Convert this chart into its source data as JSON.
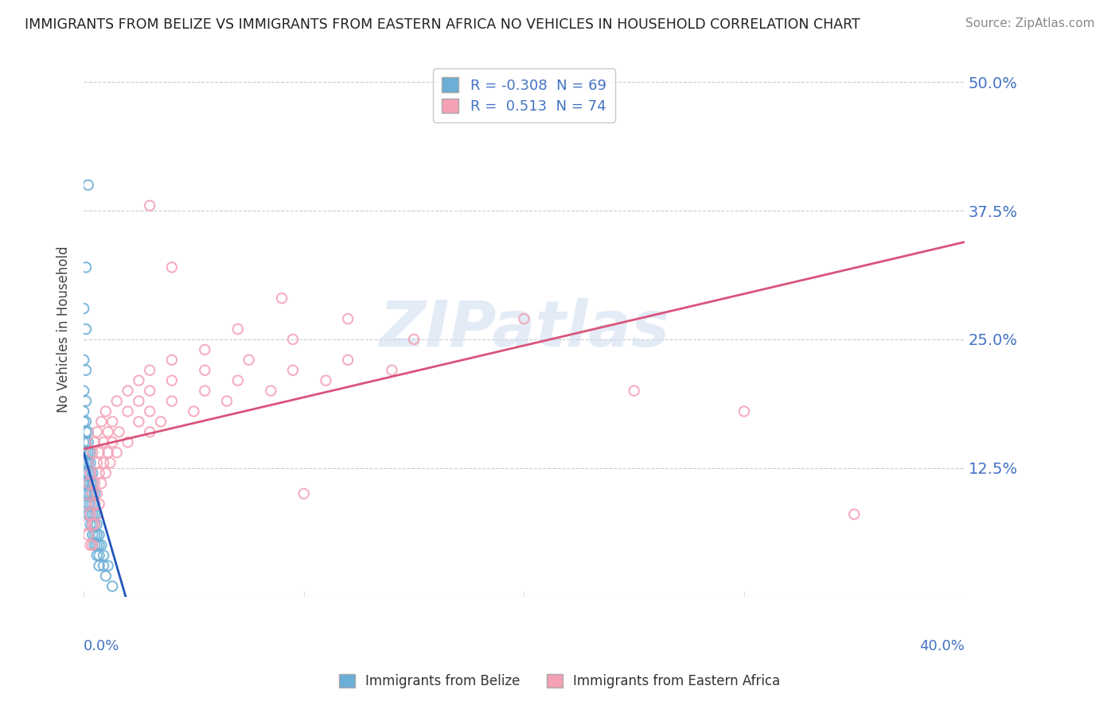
{
  "title": "IMMIGRANTS FROM BELIZE VS IMMIGRANTS FROM EASTERN AFRICA NO VEHICLES IN HOUSEHOLD CORRELATION CHART",
  "source": "Source: ZipAtlas.com",
  "xlim": [
    0.0,
    0.4
  ],
  "ylim": [
    0.0,
    0.52
  ],
  "ylabel_ticks": [
    0.0,
    0.125,
    0.25,
    0.375,
    0.5
  ],
  "ylabel_labels": [
    "",
    "12.5%",
    "25.0%",
    "37.5%",
    "50.0%"
  ],
  "belize_color": "#6baed6",
  "belize_line_color": "#2255bb",
  "eastern_africa_color": "#f4a0b5",
  "eastern_africa_line_color": "#d9547a",
  "belize_R": -0.308,
  "belize_N": 69,
  "eastern_africa_R": 0.513,
  "eastern_africa_N": 74,
  "watermark": "ZIPatlas",
  "background_color": "#ffffff",
  "grid_color": "#cccccc",
  "tick_label_color": "#4472c4",
  "title_color": "#222222",
  "source_color": "#888888",
  "ylabel_label": "No Vehicles in Household",
  "belize_points": [
    [
      0.002,
      0.4
    ],
    [
      0.001,
      0.32
    ],
    [
      0.0,
      0.28
    ],
    [
      0.001,
      0.26
    ],
    [
      0.0,
      0.23
    ],
    [
      0.001,
      0.22
    ],
    [
      0.0,
      0.2
    ],
    [
      0.001,
      0.19
    ],
    [
      0.0,
      0.18
    ],
    [
      0.001,
      0.17
    ],
    [
      0.0,
      0.17
    ],
    [
      0.001,
      0.16
    ],
    [
      0.002,
      0.16
    ],
    [
      0.0,
      0.15
    ],
    [
      0.001,
      0.15
    ],
    [
      0.002,
      0.15
    ],
    [
      0.0,
      0.14
    ],
    [
      0.001,
      0.14
    ],
    [
      0.002,
      0.14
    ],
    [
      0.003,
      0.14
    ],
    [
      0.0,
      0.13
    ],
    [
      0.001,
      0.13
    ],
    [
      0.002,
      0.13
    ],
    [
      0.003,
      0.13
    ],
    [
      0.0,
      0.12
    ],
    [
      0.001,
      0.12
    ],
    [
      0.002,
      0.12
    ],
    [
      0.003,
      0.12
    ],
    [
      0.004,
      0.12
    ],
    [
      0.0,
      0.11
    ],
    [
      0.001,
      0.11
    ],
    [
      0.002,
      0.11
    ],
    [
      0.003,
      0.11
    ],
    [
      0.004,
      0.11
    ],
    [
      0.001,
      0.1
    ],
    [
      0.002,
      0.1
    ],
    [
      0.003,
      0.1
    ],
    [
      0.004,
      0.1
    ],
    [
      0.005,
      0.1
    ],
    [
      0.001,
      0.09
    ],
    [
      0.002,
      0.09
    ],
    [
      0.003,
      0.09
    ],
    [
      0.004,
      0.09
    ],
    [
      0.005,
      0.09
    ],
    [
      0.002,
      0.08
    ],
    [
      0.003,
      0.08
    ],
    [
      0.004,
      0.08
    ],
    [
      0.005,
      0.08
    ],
    [
      0.006,
      0.08
    ],
    [
      0.003,
      0.07
    ],
    [
      0.004,
      0.07
    ],
    [
      0.005,
      0.07
    ],
    [
      0.006,
      0.07
    ],
    [
      0.004,
      0.06
    ],
    [
      0.005,
      0.06
    ],
    [
      0.006,
      0.06
    ],
    [
      0.007,
      0.06
    ],
    [
      0.005,
      0.05
    ],
    [
      0.006,
      0.05
    ],
    [
      0.007,
      0.05
    ],
    [
      0.008,
      0.05
    ],
    [
      0.006,
      0.04
    ],
    [
      0.007,
      0.04
    ],
    [
      0.009,
      0.04
    ],
    [
      0.007,
      0.03
    ],
    [
      0.009,
      0.03
    ],
    [
      0.011,
      0.03
    ],
    [
      0.01,
      0.02
    ],
    [
      0.013,
      0.01
    ]
  ],
  "eastern_africa_points": [
    [
      0.001,
      0.07
    ],
    [
      0.002,
      0.06
    ],
    [
      0.003,
      0.05
    ],
    [
      0.004,
      0.05
    ],
    [
      0.001,
      0.09
    ],
    [
      0.003,
      0.08
    ],
    [
      0.004,
      0.07
    ],
    [
      0.005,
      0.07
    ],
    [
      0.002,
      0.11
    ],
    [
      0.004,
      0.1
    ],
    [
      0.005,
      0.09
    ],
    [
      0.006,
      0.08
    ],
    [
      0.003,
      0.12
    ],
    [
      0.005,
      0.11
    ],
    [
      0.006,
      0.1
    ],
    [
      0.007,
      0.09
    ],
    [
      0.004,
      0.14
    ],
    [
      0.006,
      0.13
    ],
    [
      0.007,
      0.12
    ],
    [
      0.008,
      0.11
    ],
    [
      0.005,
      0.15
    ],
    [
      0.007,
      0.14
    ],
    [
      0.009,
      0.13
    ],
    [
      0.01,
      0.12
    ],
    [
      0.006,
      0.16
    ],
    [
      0.009,
      0.15
    ],
    [
      0.011,
      0.14
    ],
    [
      0.012,
      0.13
    ],
    [
      0.008,
      0.17
    ],
    [
      0.011,
      0.16
    ],
    [
      0.013,
      0.15
    ],
    [
      0.015,
      0.14
    ],
    [
      0.01,
      0.18
    ],
    [
      0.013,
      0.17
    ],
    [
      0.016,
      0.16
    ],
    [
      0.02,
      0.15
    ],
    [
      0.015,
      0.19
    ],
    [
      0.02,
      0.18
    ],
    [
      0.025,
      0.17
    ],
    [
      0.03,
      0.16
    ],
    [
      0.02,
      0.2
    ],
    [
      0.025,
      0.19
    ],
    [
      0.03,
      0.18
    ],
    [
      0.035,
      0.17
    ],
    [
      0.025,
      0.21
    ],
    [
      0.03,
      0.2
    ],
    [
      0.04,
      0.19
    ],
    [
      0.05,
      0.18
    ],
    [
      0.03,
      0.22
    ],
    [
      0.04,
      0.21
    ],
    [
      0.055,
      0.2
    ],
    [
      0.065,
      0.19
    ],
    [
      0.04,
      0.23
    ],
    [
      0.055,
      0.22
    ],
    [
      0.07,
      0.21
    ],
    [
      0.085,
      0.2
    ],
    [
      0.055,
      0.24
    ],
    [
      0.075,
      0.23
    ],
    [
      0.095,
      0.22
    ],
    [
      0.11,
      0.21
    ],
    [
      0.07,
      0.26
    ],
    [
      0.095,
      0.25
    ],
    [
      0.12,
      0.23
    ],
    [
      0.14,
      0.22
    ],
    [
      0.09,
      0.29
    ],
    [
      0.12,
      0.27
    ],
    [
      0.15,
      0.25
    ],
    [
      0.2,
      0.27
    ],
    [
      0.25,
      0.2
    ],
    [
      0.3,
      0.18
    ],
    [
      0.03,
      0.38
    ],
    [
      0.04,
      0.32
    ],
    [
      0.35,
      0.08
    ],
    [
      0.1,
      0.1
    ]
  ]
}
